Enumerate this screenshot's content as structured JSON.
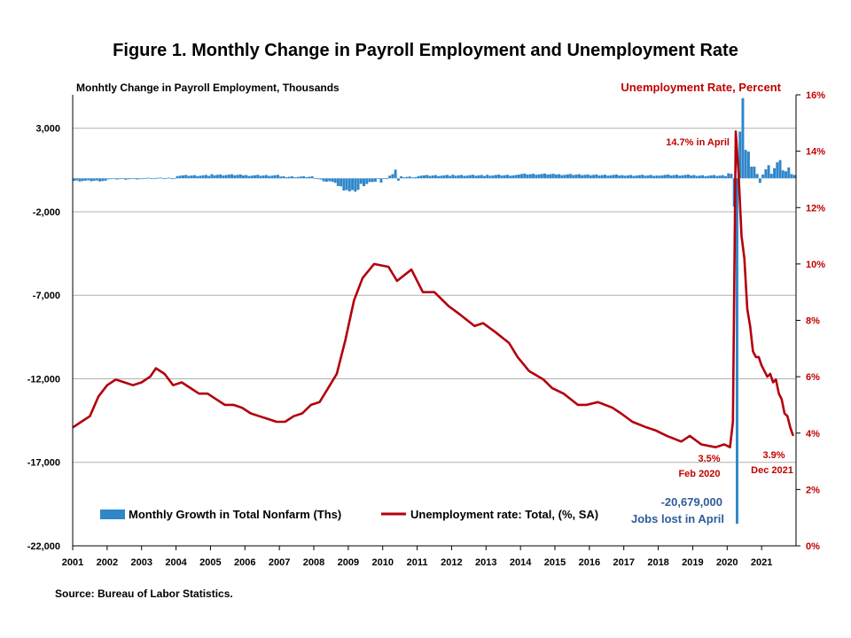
{
  "title": "Figure 1. Monthly Change in Payroll Employment and Unemployment Rate",
  "source": "Source: Bureau of Labor Statistics.",
  "colors": {
    "bars": "#2f86c9",
    "line": "#b3000c",
    "right_axis": "#c00000",
    "annotation_blue": "#2e5c9e",
    "grid": "#b0b0b0"
  },
  "chart_data": {
    "type": "bar+line",
    "left_axis": {
      "title": "Monhtly Change in Payroll Employment, Thousands",
      "ylim": [
        -22000,
        5000
      ],
      "ticks": [
        3000,
        -2000,
        -7000,
        -12000,
        -17000,
        -22000
      ],
      "tick_labels": [
        "3,000",
        "-2,000",
        "-7,000",
        "-12,000",
        "-17,000",
        "-22,000"
      ]
    },
    "right_axis": {
      "title": "Unemployment Rate, Percent",
      "ylim": [
        0,
        16
      ],
      "ticks": [
        0,
        2,
        4,
        6,
        8,
        10,
        12,
        14,
        16
      ],
      "tick_labels": [
        "0%",
        "2%",
        "4%",
        "6%",
        "8%",
        "10%",
        "12%",
        "14%",
        "16%"
      ]
    },
    "x_axis": {
      "tick_labels": [
        "2001",
        "2002",
        "2003",
        "2004",
        "2005",
        "2006",
        "2007",
        "2008",
        "2009",
        "2010",
        "2011",
        "2012",
        "2013",
        "2014",
        "2015",
        "2016",
        "2017",
        "2018",
        "2019",
        "2020",
        "2021"
      ]
    },
    "series": [
      {
        "name": "Monthly Growth in Total Nonfarm (Ths)",
        "type": "bar",
        "axis": "left",
        "annual_avg": [
          {
            "year": 2001,
            "value": -150
          },
          {
            "year": 2002,
            "value": -45
          },
          {
            "year": 2003,
            "value": 10
          },
          {
            "year": 2004,
            "value": 170
          },
          {
            "year": 2005,
            "value": 210
          },
          {
            "year": 2006,
            "value": 175
          },
          {
            "year": 2007,
            "value": 95
          },
          {
            "year": 2008,
            "value": -300
          },
          {
            "year": 2009,
            "value": -420
          },
          {
            "year": 2010,
            "value": 85
          },
          {
            "year": 2011,
            "value": 170
          },
          {
            "year": 2012,
            "value": 180
          },
          {
            "year": 2013,
            "value": 190
          },
          {
            "year": 2014,
            "value": 250
          },
          {
            "year": 2015,
            "value": 225
          },
          {
            "year": 2016,
            "value": 195
          },
          {
            "year": 2017,
            "value": 180
          },
          {
            "year": 2018,
            "value": 195
          },
          {
            "year": 2019,
            "value": 165
          }
        ],
        "monthly_2008_2009": [
          {
            "date": "2008-01",
            "value": -10
          },
          {
            "date": "2008-02",
            "value": -50
          },
          {
            "date": "2008-03",
            "value": -70
          },
          {
            "date": "2008-04",
            "value": -180
          },
          {
            "date": "2008-05",
            "value": -200
          },
          {
            "date": "2008-06",
            "value": -170
          },
          {
            "date": "2008-07",
            "value": -210
          },
          {
            "date": "2008-08",
            "value": -270
          },
          {
            "date": "2008-09",
            "value": -460
          },
          {
            "date": "2008-10",
            "value": -480
          },
          {
            "date": "2008-11",
            "value": -730
          },
          {
            "date": "2008-12",
            "value": -700
          },
          {
            "date": "2009-01",
            "value": -780
          },
          {
            "date": "2009-02",
            "value": -700
          },
          {
            "date": "2009-03",
            "value": -800
          },
          {
            "date": "2009-04",
            "value": -690
          },
          {
            "date": "2009-05",
            "value": -330
          },
          {
            "date": "2009-06",
            "value": -470
          },
          {
            "date": "2009-07",
            "value": -340
          },
          {
            "date": "2009-08",
            "value": -220
          },
          {
            "date": "2009-09",
            "value": -220
          },
          {
            "date": "2009-10",
            "value": -200
          },
          {
            "date": "2009-11",
            "value": 10
          },
          {
            "date": "2009-12",
            "value": -260
          },
          {
            "date": "2010-01",
            "value": 15
          },
          {
            "date": "2010-02",
            "value": -50
          },
          {
            "date": "2010-03",
            "value": 160
          },
          {
            "date": "2010-04",
            "value": 250
          },
          {
            "date": "2010-05",
            "value": 520
          },
          {
            "date": "2010-06",
            "value": -140
          }
        ],
        "monthly_2020_2021": [
          {
            "date": "2020-01",
            "value": 300
          },
          {
            "date": "2020-02",
            "value": 270
          },
          {
            "date": "2020-03",
            "value": -1700
          },
          {
            "date": "2020-04",
            "value": -20679
          },
          {
            "date": "2020-05",
            "value": 2800
          },
          {
            "date": "2020-06",
            "value": 4800
          },
          {
            "date": "2020-07",
            "value": 1700
          },
          {
            "date": "2020-08",
            "value": 1600
          },
          {
            "date": "2020-09",
            "value": 700
          },
          {
            "date": "2020-10",
            "value": 700
          },
          {
            "date": "2020-11",
            "value": 260
          },
          {
            "date": "2020-12",
            "value": -270
          },
          {
            "date": "2021-01",
            "value": 230
          },
          {
            "date": "2021-02",
            "value": 540
          },
          {
            "date": "2021-03",
            "value": 790
          },
          {
            "date": "2021-04",
            "value": 270
          },
          {
            "date": "2021-05",
            "value": 610
          },
          {
            "date": "2021-06",
            "value": 960
          },
          {
            "date": "2021-07",
            "value": 1090
          },
          {
            "date": "2021-08",
            "value": 480
          },
          {
            "date": "2021-09",
            "value": 420
          },
          {
            "date": "2021-10",
            "value": 650
          },
          {
            "date": "2021-11",
            "value": 250
          },
          {
            "date": "2021-12",
            "value": 200
          }
        ]
      },
      {
        "name": "Unemployment rate: Total, (%, SA)",
        "type": "line",
        "axis": "right",
        "points": [
          {
            "date": "2001-01",
            "value": 4.2
          },
          {
            "date": "2001-04",
            "value": 4.4
          },
          {
            "date": "2001-07",
            "value": 4.6
          },
          {
            "date": "2001-10",
            "value": 5.3
          },
          {
            "date": "2002-01",
            "value": 5.7
          },
          {
            "date": "2002-04",
            "value": 5.9
          },
          {
            "date": "2002-07",
            "value": 5.8
          },
          {
            "date": "2002-10",
            "value": 5.7
          },
          {
            "date": "2003-01",
            "value": 5.8
          },
          {
            "date": "2003-04",
            "value": 6.0
          },
          {
            "date": "2003-06",
            "value": 6.3
          },
          {
            "date": "2003-09",
            "value": 6.1
          },
          {
            "date": "2003-12",
            "value": 5.7
          },
          {
            "date": "2004-03",
            "value": 5.8
          },
          {
            "date": "2004-06",
            "value": 5.6
          },
          {
            "date": "2004-09",
            "value": 5.4
          },
          {
            "date": "2004-12",
            "value": 5.4
          },
          {
            "date": "2005-03",
            "value": 5.2
          },
          {
            "date": "2005-06",
            "value": 5.0
          },
          {
            "date": "2005-09",
            "value": 5.0
          },
          {
            "date": "2005-12",
            "value": 4.9
          },
          {
            "date": "2006-03",
            "value": 4.7
          },
          {
            "date": "2006-06",
            "value": 4.6
          },
          {
            "date": "2006-09",
            "value": 4.5
          },
          {
            "date": "2006-12",
            "value": 4.4
          },
          {
            "date": "2007-03",
            "value": 4.4
          },
          {
            "date": "2007-06",
            "value": 4.6
          },
          {
            "date": "2007-09",
            "value": 4.7
          },
          {
            "date": "2007-12",
            "value": 5.0
          },
          {
            "date": "2008-03",
            "value": 5.1
          },
          {
            "date": "2008-06",
            "value": 5.6
          },
          {
            "date": "2008-09",
            "value": 6.1
          },
          {
            "date": "2008-12",
            "value": 7.3
          },
          {
            "date": "2009-03",
            "value": 8.7
          },
          {
            "date": "2009-06",
            "value": 9.5
          },
          {
            "date": "2009-10",
            "value": 10.0
          },
          {
            "date": "2010-03",
            "value": 9.9
          },
          {
            "date": "2010-06",
            "value": 9.4
          },
          {
            "date": "2010-11",
            "value": 9.8
          },
          {
            "date": "2011-03",
            "value": 9.0
          },
          {
            "date": "2011-07",
            "value": 9.0
          },
          {
            "date": "2011-12",
            "value": 8.5
          },
          {
            "date": "2012-04",
            "value": 8.2
          },
          {
            "date": "2012-09",
            "value": 7.8
          },
          {
            "date": "2012-12",
            "value": 7.9
          },
          {
            "date": "2013-04",
            "value": 7.6
          },
          {
            "date": "2013-09",
            "value": 7.2
          },
          {
            "date": "2013-12",
            "value": 6.7
          },
          {
            "date": "2014-04",
            "value": 6.2
          },
          {
            "date": "2014-09",
            "value": 5.9
          },
          {
            "date": "2014-12",
            "value": 5.6
          },
          {
            "date": "2015-04",
            "value": 5.4
          },
          {
            "date": "2015-09",
            "value": 5.0
          },
          {
            "date": "2015-12",
            "value": 5.0
          },
          {
            "date": "2016-04",
            "value": 5.1
          },
          {
            "date": "2016-09",
            "value": 4.9
          },
          {
            "date": "2016-12",
            "value": 4.7
          },
          {
            "date": "2017-04",
            "value": 4.4
          },
          {
            "date": "2017-09",
            "value": 4.2
          },
          {
            "date": "2017-12",
            "value": 4.1
          },
          {
            "date": "2018-04",
            "value": 3.9
          },
          {
            "date": "2018-09",
            "value": 3.7
          },
          {
            "date": "2018-12",
            "value": 3.9
          },
          {
            "date": "2019-04",
            "value": 3.6
          },
          {
            "date": "2019-09",
            "value": 3.5
          },
          {
            "date": "2019-12",
            "value": 3.6
          },
          {
            "date": "2020-02",
            "value": 3.5
          },
          {
            "date": "2020-03",
            "value": 4.4
          },
          {
            "date": "2020-04",
            "value": 14.7
          },
          {
            "date": "2020-05",
            "value": 13.2
          },
          {
            "date": "2020-06",
            "value": 11.0
          },
          {
            "date": "2020-07",
            "value": 10.2
          },
          {
            "date": "2020-08",
            "value": 8.4
          },
          {
            "date": "2020-09",
            "value": 7.8
          },
          {
            "date": "2020-10",
            "value": 6.9
          },
          {
            "date": "2020-11",
            "value": 6.7
          },
          {
            "date": "2020-12",
            "value": 6.7
          },
          {
            "date": "2021-01",
            "value": 6.4
          },
          {
            "date": "2021-02",
            "value": 6.2
          },
          {
            "date": "2021-03",
            "value": 6.0
          },
          {
            "date": "2021-04",
            "value": 6.1
          },
          {
            "date": "2021-05",
            "value": 5.8
          },
          {
            "date": "2021-06",
            "value": 5.9
          },
          {
            "date": "2021-07",
            "value": 5.4
          },
          {
            "date": "2021-08",
            "value": 5.2
          },
          {
            "date": "2021-09",
            "value": 4.7
          },
          {
            "date": "2021-10",
            "value": 4.6
          },
          {
            "date": "2021-11",
            "value": 4.2
          },
          {
            "date": "2021-12",
            "value": 3.9
          }
        ]
      }
    ],
    "annotations": {
      "april_peak": "14.7% in April",
      "feb_value": "3.5%",
      "feb_label": "Feb 2020",
      "dec_value": "3.9%",
      "dec_label": "Dec 2021",
      "jobs_value": "-20,679,000",
      "jobs_label": "Jobs lost in April"
    },
    "legend": {
      "placement": "bottom-left",
      "bar_label": "Monthly Growth in Total Nonfarm (Ths)",
      "line_label": "Unemployment rate: Total, (%, SA)"
    },
    "grid": true
  }
}
